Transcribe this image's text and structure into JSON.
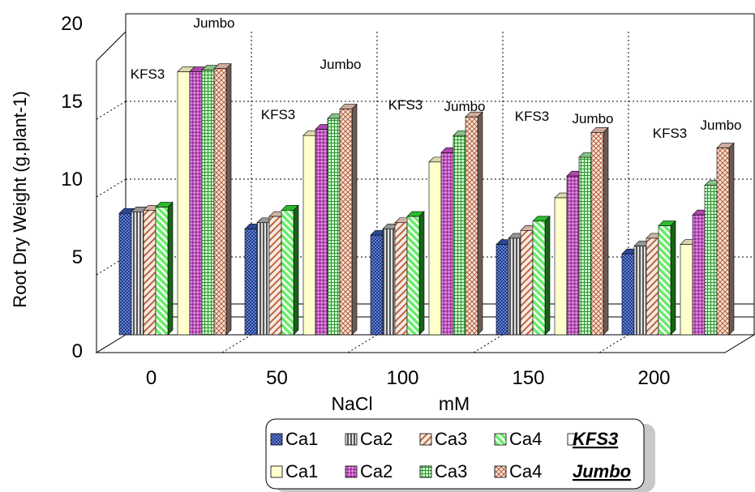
{
  "chart_data": {
    "type": "bar",
    "title": "",
    "ylabel": "Root Dry Weight (g.plant-1)",
    "xlabel_left": "NaCl",
    "xlabel_right": "mM",
    "ylim": [
      0,
      20
    ],
    "yticks": [
      "0",
      "5",
      "10",
      "15",
      "20"
    ],
    "categories": [
      "0",
      "50",
      "100",
      "150",
      "200"
    ],
    "group_labels": [
      "KFS3",
      "Jumbo"
    ],
    "series": [
      {
        "name": "Ca1",
        "group": "KFS3",
        "color": "#3355aa",
        "pattern": "dots-blue",
        "values": [
          7.8,
          6.8,
          6.4,
          5.8,
          5.2
        ]
      },
      {
        "name": "Ca2",
        "group": "KFS3",
        "color": "#b0b0b0",
        "pattern": "vstripe",
        "values": [
          7.9,
          7.2,
          6.8,
          6.2,
          5.7
        ]
      },
      {
        "name": "Ca3",
        "group": "KFS3",
        "color": "#f3d2c2",
        "pattern": "diag-brown",
        "values": [
          8.0,
          7.6,
          7.2,
          6.7,
          6.2
        ]
      },
      {
        "name": "Ca4",
        "group": "KFS3",
        "color": "#33dd33",
        "pattern": "diag-green",
        "values": [
          8.2,
          8.0,
          7.6,
          7.3,
          7.0
        ]
      },
      {
        "name": "Ca1",
        "group": "Jumbo",
        "color": "#ffffcc",
        "pattern": "solid",
        "values": [
          16.9,
          12.8,
          11.1,
          8.8,
          5.8
        ]
      },
      {
        "name": "Ca2",
        "group": "Jumbo",
        "color": "#cc55cc",
        "pattern": "check-purple",
        "values": [
          16.9,
          13.2,
          11.7,
          10.2,
          7.7
        ]
      },
      {
        "name": "Ca3",
        "group": "Jumbo",
        "color": "#9ee59e",
        "pattern": "grid-green",
        "values": [
          17.0,
          13.9,
          12.8,
          11.4,
          9.6
        ]
      },
      {
        "name": "Ca4",
        "group": "Jumbo",
        "color": "#f0c8b8",
        "pattern": "xhatch-brown",
        "values": [
          17.1,
          14.5,
          14.0,
          13.0,
          12.0
        ]
      }
    ],
    "legend": {
      "placement": "bottom-right",
      "rows": [
        {
          "items": [
            "Ca1",
            "Ca2",
            "Ca3",
            "Ca4"
          ],
          "label": "KFS3"
        },
        {
          "items": [
            "Ca1",
            "Ca2",
            "Ca3",
            "Ca4"
          ],
          "label": "Jumbo"
        }
      ]
    },
    "grid": true
  }
}
